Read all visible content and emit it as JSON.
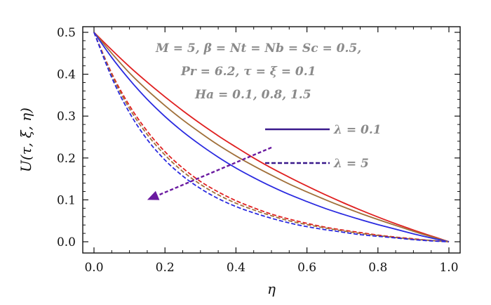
{
  "chart_data": {
    "type": "line",
    "xlabel": "η",
    "ylabel": "U(τ, ξ, η)",
    "xlim": [
      0.0,
      1.0
    ],
    "ylim": [
      0.0,
      0.5
    ],
    "x_ticks": [
      "0.0",
      "0.2",
      "0.4",
      "0.6",
      "0.8",
      "1.0"
    ],
    "y_ticks": [
      "0.0",
      "0.1",
      "0.2",
      "0.3",
      "0.4",
      "0.5"
    ],
    "grid": false,
    "annotations": [
      "M = 5, β = Nt = Nb = Sc = 0.5,",
      "Pr = 6.2, τ = ξ = 0.1",
      "Ha = 0.1, 0.8, 1.5"
    ],
    "legend": [
      {
        "label": "λ = 0.1",
        "style": "solid",
        "color": "#3a1a8c"
      },
      {
        "label": "λ = 5",
        "style": "dashed",
        "color": "#3a1a8c"
      }
    ],
    "arrow": {
      "from": [
        0.5,
        0.225
      ],
      "to": [
        0.15,
        0.1
      ],
      "color": "#6a1aa0",
      "style": "dashed"
    },
    "x": [
      0.0,
      0.05,
      0.1,
      0.15,
      0.2,
      0.25,
      0.3,
      0.35,
      0.4,
      0.45,
      0.5,
      0.55,
      0.6,
      0.65,
      0.7,
      0.75,
      0.8,
      0.85,
      0.9,
      0.95,
      1.0
    ],
    "series": [
      {
        "name": "",
        "style": "solid",
        "color": "#e02020",
        "values": [
          0.5,
          0.458,
          0.418,
          0.381,
          0.346,
          0.313,
          0.282,
          0.253,
          0.226,
          0.2,
          0.176,
          0.154,
          0.133,
          0.113,
          0.094,
          0.076,
          0.059,
          0.043,
          0.028,
          0.014,
          0.0
        ]
      },
      {
        "name": "",
        "style": "solid",
        "color": "#a0703a",
        "values": [
          0.5,
          0.45,
          0.403,
          0.362,
          0.325,
          0.291,
          0.26,
          0.231,
          0.205,
          0.181,
          0.159,
          0.138,
          0.119,
          0.101,
          0.084,
          0.068,
          0.053,
          0.039,
          0.025,
          0.012,
          0.0
        ]
      },
      {
        "name": "",
        "style": "solid",
        "color": "#2a2ae0",
        "values": [
          0.5,
          0.44,
          0.387,
          0.34,
          0.299,
          0.263,
          0.231,
          0.202,
          0.176,
          0.153,
          0.132,
          0.113,
          0.096,
          0.08,
          0.066,
          0.053,
          0.041,
          0.03,
          0.019,
          0.009,
          0.0
        ]
      },
      {
        "name": "",
        "style": "dashed",
        "color": "#e02020",
        "values": [
          0.5,
          0.402,
          0.325,
          0.264,
          0.215,
          0.176,
          0.144,
          0.119,
          0.098,
          0.081,
          0.066,
          0.054,
          0.044,
          0.035,
          0.028,
          0.022,
          0.016,
          0.011,
          0.007,
          0.003,
          0.0
        ]
      },
      {
        "name": "",
        "style": "dashed",
        "color": "#a0703a",
        "values": [
          0.5,
          0.398,
          0.318,
          0.256,
          0.207,
          0.168,
          0.137,
          0.112,
          0.092,
          0.076,
          0.062,
          0.05,
          0.041,
          0.033,
          0.026,
          0.02,
          0.015,
          0.01,
          0.006,
          0.003,
          0.0
        ]
      },
      {
        "name": "",
        "style": "dashed",
        "color": "#2a2ae0",
        "values": [
          0.5,
          0.392,
          0.308,
          0.244,
          0.195,
          0.157,
          0.127,
          0.103,
          0.084,
          0.069,
          0.056,
          0.045,
          0.036,
          0.029,
          0.023,
          0.017,
          0.013,
          0.009,
          0.005,
          0.002,
          0.0
        ]
      }
    ]
  }
}
